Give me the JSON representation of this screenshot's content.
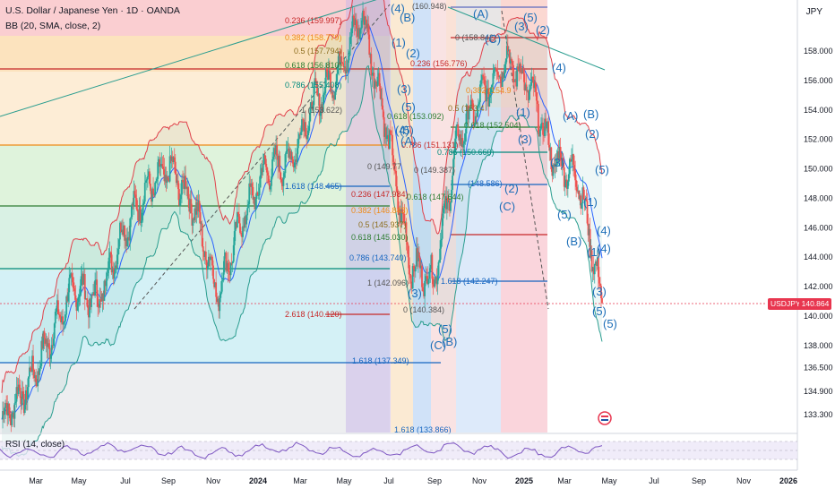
{
  "header": {
    "title": "U.S. Dollar / Japanese Yen · 1D · OANDA",
    "indicator": "BB (20, SMA, close, 2)",
    "rsi_label": "RSI (14, close)"
  },
  "price_axis": {
    "currency": "JPY",
    "ticks": [
      "158.000",
      "156.000",
      "154.000",
      "152.000",
      "150.000",
      "148.000",
      "146.000",
      "144.000",
      "142.000",
      "140.000",
      "138.000",
      "136.500",
      "134.900",
      "133.300"
    ]
  },
  "time_axis": {
    "labels": [
      "Mar",
      "May",
      "Jul",
      "Sep",
      "Nov",
      "2024",
      "Mar",
      "May",
      "Jul",
      "Sep",
      "Nov",
      "2025",
      "Mar",
      "May",
      "Jul",
      "Sep",
      "Nov",
      "2026"
    ]
  },
  "last_price": {
    "symbol": "USDJPY",
    "value": "140.864"
  },
  "fib_labels": [
    "0.236 (159.997)",
    "0.382 (158.779)",
    "0.5 (157.794)",
    "0.618 (156.810)",
    "0.786 (155.408)",
    "1 (153.622)",
    "1.618 (148.465)",
    "2.618 (140.120)",
    "1.618 (137.349)",
    "0.236 (147.984)",
    "0.382 (146.843)",
    "0.5 (145.937)",
    "0.618 (145.030)",
    "0.786 (143.740)",
    "1 (142.096)",
    "0 (140.384)",
    "0 (149.77",
    "1.618 (133.866)",
    "(160.948)",
    "0 (158.842)",
    "0.236 (156.776)",
    "0.382 (154.9",
    "0.5 (153.4",
    "0.618 (152.504)",
    "0.786 (150.660)",
    "0 (149.387)",
    "0.618 (147.644)",
    "(148.586)",
    "1.618 (142.247)",
    "0.618 (153.092)",
    "0.786 (151.131)"
  ],
  "wave_labels": [
    "(4)",
    "(B)",
    "(5)",
    "(2)",
    "(1)",
    "(3)",
    "(4)",
    "(5)",
    "(A)",
    "(3)",
    "(5)",
    "(B)",
    "(C)",
    "(A)",
    "(C)",
    "(3)",
    "(5)",
    "(2)",
    "(4)",
    "(1)",
    "(3)",
    "(A)",
    "(B)",
    "(5)",
    "(2)",
    "(C)",
    "(2)",
    "(3)",
    "(5)",
    "(1)",
    "(4)",
    "(B)",
    "(4)",
    "(1)",
    "(3)",
    "(5)",
    "(5)"
  ],
  "colors": {
    "candle_up": "#26a69a",
    "candle_down": "#ef5350",
    "bb_upper": "#e0404a",
    "bb_lower": "#2a9d8f",
    "bb_basis": "#2962ff",
    "accent": "#2962ff",
    "last_price": "#e8364f"
  },
  "chart_data": {
    "type": "line",
    "symbol": "USDJPY",
    "timeframe": "1D",
    "ylim": [
      132.5,
      161.5
    ],
    "x": [
      "2023-03",
      "2023-04",
      "2023-05",
      "2023-06",
      "2023-07",
      "2023-08",
      "2023-09",
      "2023-10",
      "2023-11",
      "2023-12",
      "2024-01",
      "2024-02",
      "2024-03",
      "2024-04",
      "2024-05",
      "2024-06",
      "2024-07",
      "2024-08",
      "2024-09",
      "2024-10",
      "2024-11",
      "2024-12",
      "2025-01",
      "2025-02",
      "2025-03",
      "2025-04"
    ],
    "series": [
      {
        "name": "USDJPY",
        "values": [
          133.0,
          135.0,
          138.5,
          142.0,
          141.0,
          145.5,
          148.5,
          150.0,
          147.5,
          141.5,
          146.5,
          150.0,
          150.5,
          154.5,
          156.5,
          160.5,
          153.0,
          143.5,
          142.5,
          152.0,
          155.0,
          157.5,
          155.5,
          150.5,
          149.5,
          140.9
        ]
      }
    ],
    "rsi": {
      "label": "RSI (14, close)",
      "levels": [
        30,
        50,
        70
      ]
    },
    "last_value": 140.864,
    "grid": false,
    "xlabel": "",
    "ylabel": ""
  }
}
